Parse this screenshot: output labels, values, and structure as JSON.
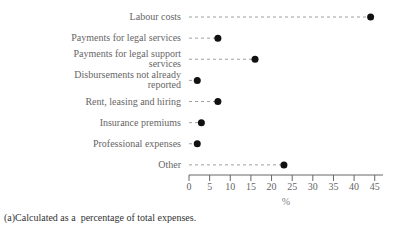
{
  "chart_data": {
    "type": "dot",
    "orientation": "horizontal",
    "categories": [
      "Labour costs",
      "Payments for legal services",
      "Payments for legal support services",
      "Disbursements not already reported",
      "Rent, leasing and hiring",
      "Insurance premiums",
      "Professional expenses",
      "Other"
    ],
    "values": [
      44,
      7,
      16,
      2,
      7,
      3,
      2,
      23
    ],
    "color": "#111111",
    "line_style": "dashed",
    "xlabel": "%",
    "xlim": [
      0,
      47
    ],
    "xticks": [
      0,
      5,
      10,
      15,
      20,
      25,
      30,
      35,
      40,
      45
    ],
    "annotations": [
      "(a)Calculated as a  percentage of total expenses."
    ]
  }
}
